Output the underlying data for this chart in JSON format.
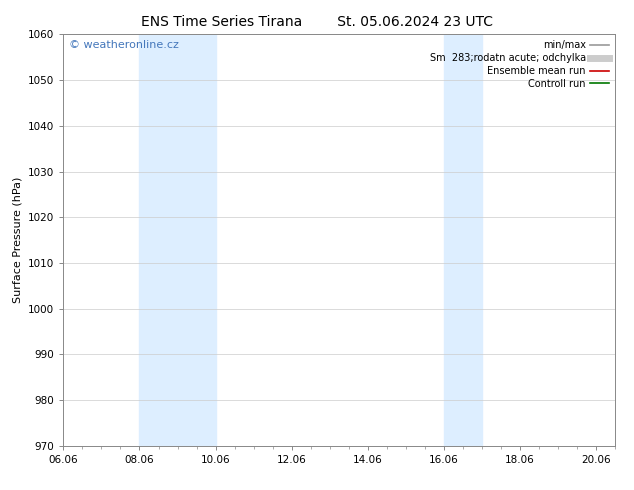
{
  "title_left": "ENS Time Series Tirana",
  "title_right": "St. 05.06.2024 23 UTC",
  "ylabel": "Surface Pressure (hPa)",
  "ylim": [
    970,
    1060
  ],
  "yticks": [
    970,
    980,
    990,
    1000,
    1010,
    1020,
    1030,
    1040,
    1050,
    1060
  ],
  "xlim": [
    0,
    14.5
  ],
  "xtick_labels": [
    "06.06",
    "08.06",
    "10.06",
    "12.06",
    "14.06",
    "16.06",
    "18.06",
    "20.06"
  ],
  "xtick_positions": [
    0,
    2,
    4,
    6,
    8,
    10,
    12,
    14
  ],
  "shaded_regions": [
    {
      "start": 2,
      "end": 4
    },
    {
      "start": 10,
      "end": 11.0
    }
  ],
  "shade_color": "#ddeeff",
  "watermark_text": "© weatheronline.cz",
  "watermark_color": "#4477bb",
  "legend_entries": [
    {
      "label": "min/max",
      "color": "#999999",
      "lw": 1.2
    },
    {
      "label": "Sm  283;rodatn acute; odchylka",
      "color": "#cccccc",
      "lw": 5
    },
    {
      "label": "Ensemble mean run",
      "color": "#cc0000",
      "lw": 1.2
    },
    {
      "label": "Controll run",
      "color": "#007700",
      "lw": 1.2
    }
  ],
  "bg_color": "#ffffff",
  "grid_color": "#cccccc",
  "title_fontsize": 10,
  "label_fontsize": 8,
  "tick_fontsize": 7.5,
  "legend_fontsize": 7,
  "watermark_fontsize": 8
}
